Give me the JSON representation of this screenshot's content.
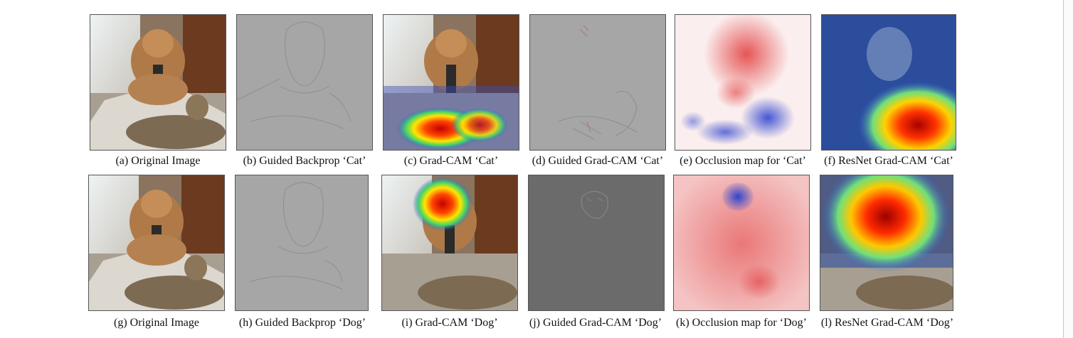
{
  "figure": {
    "row1": [
      {
        "caption": "(a) Original Image",
        "kind": "original"
      },
      {
        "caption": "(b) Guided Backprop ‘Cat’",
        "kind": "guided"
      },
      {
        "caption": "(c) Grad-CAM ‘Cat’",
        "kind": "gradcam"
      },
      {
        "caption": "(d) Guided Grad-CAM ‘Cat’",
        "kind": "guided-gradcam"
      },
      {
        "caption": "(e) Occlusion map for ‘Cat’",
        "kind": "occlusion"
      },
      {
        "caption": "(f) ResNet Grad-CAM ‘Cat’",
        "kind": "resnet-gradcam"
      }
    ],
    "row2": [
      {
        "caption": "(g) Original Image",
        "kind": "original"
      },
      {
        "caption": "(h) Guided Backprop ‘Dog’",
        "kind": "guided"
      },
      {
        "caption": "(i) Grad-CAM ‘Dog’",
        "kind": "gradcam"
      },
      {
        "caption": "(j) Guided Grad-CAM ‘Dog’",
        "kind": "guided-gradcam"
      },
      {
        "caption": "(k) Occlusion map for ‘Dog’",
        "kind": "occlusion"
      },
      {
        "caption": "(l) ResNet Grad-CAM ‘Dog’",
        "kind": "resnet-gradcam"
      }
    ]
  },
  "colors": {
    "dog": "#b07a48",
    "cat": "#7d6a52",
    "floor": "#a89f93",
    "window": "#dfe7ea",
    "door": "#6b3a1f",
    "guided_gray": "#a6a6a6",
    "guided_dark": "#6b6b6b",
    "occlusion_red": "#e23a3a",
    "occlusion_blue": "#2f45d0"
  }
}
